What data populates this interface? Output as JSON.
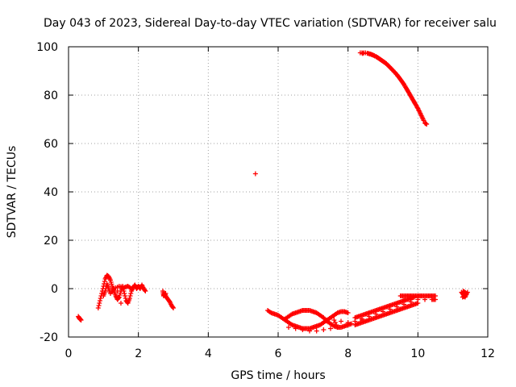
{
  "chart_data": {
    "type": "scatter",
    "title": "Day 043 of 2023, Sidereal Day-to-day VTEC variation (SDTVAR) for receiver salu",
    "xlabel": "GPS time / hours",
    "ylabel": "SDTVAR / TECUs",
    "xlim": [
      0,
      12
    ],
    "ylim": [
      -20,
      100
    ],
    "xticks": [
      0,
      2,
      4,
      6,
      8,
      10,
      12
    ],
    "yticks": [
      -20,
      0,
      20,
      40,
      60,
      80,
      100
    ],
    "grid": true,
    "marker": "+",
    "color": "#ff0000",
    "series": [
      {
        "name": "SDTVAR",
        "points": [
          [
            0.28,
            -11.5
          ],
          [
            0.32,
            -12.5
          ],
          [
            0.36,
            -13
          ],
          [
            0.3,
            -12
          ],
          [
            0.85,
            -8
          ],
          [
            0.9,
            -5
          ],
          [
            0.95,
            -2
          ],
          [
            1.0,
            1
          ],
          [
            1.05,
            4
          ],
          [
            1.1,
            5.5
          ],
          [
            1.15,
            5
          ],
          [
            1.2,
            3.5
          ],
          [
            1.25,
            1
          ],
          [
            1.3,
            -1
          ],
          [
            1.35,
            -3
          ],
          [
            1.4,
            -4.5
          ],
          [
            1.45,
            -3.5
          ],
          [
            1.5,
            -1
          ],
          [
            1.55,
            1
          ],
          [
            1.6,
            -2
          ],
          [
            1.65,
            -5
          ],
          [
            1.7,
            -6
          ],
          [
            1.75,
            -4
          ],
          [
            1.8,
            -1
          ],
          [
            1.85,
            0.5
          ],
          [
            1.9,
            1.5
          ],
          [
            1.95,
            0
          ],
          [
            2.0,
            1
          ],
          [
            2.05,
            0
          ],
          [
            2.1,
            1.5
          ],
          [
            2.15,
            0
          ],
          [
            2.2,
            -1
          ],
          [
            1.0,
            -3
          ],
          [
            1.05,
            -1
          ],
          [
            1.1,
            2
          ],
          [
            1.15,
            0
          ],
          [
            1.2,
            -2
          ],
          [
            1.3,
            0
          ],
          [
            1.45,
            1
          ],
          [
            1.6,
            0.5
          ],
          [
            1.7,
            1
          ],
          [
            1.8,
            0
          ],
          [
            1.5,
            -6
          ],
          [
            1.4,
            -1
          ],
          [
            2.7,
            -1
          ],
          [
            2.72,
            -3
          ],
          [
            2.75,
            -2
          ],
          [
            2.8,
            -3.5
          ],
          [
            2.85,
            -4.5
          ],
          [
            2.9,
            -5.5
          ],
          [
            2.95,
            -7
          ],
          [
            3.0,
            -8
          ],
          [
            2.78,
            -2
          ],
          [
            5.35,
            47.5
          ],
          [
            5.7,
            -9
          ],
          [
            5.8,
            -10
          ],
          [
            5.9,
            -10.5
          ],
          [
            6.0,
            -11
          ],
          [
            6.1,
            -12
          ],
          [
            6.2,
            -13
          ],
          [
            6.3,
            -14
          ],
          [
            6.4,
            -15
          ],
          [
            6.5,
            -15.5
          ],
          [
            6.6,
            -16
          ],
          [
            6.7,
            -16.5
          ],
          [
            6.8,
            -16.5
          ],
          [
            6.9,
            -16.5
          ],
          [
            7.0,
            -16
          ],
          [
            7.1,
            -15.5
          ],
          [
            7.2,
            -15
          ],
          [
            7.3,
            -14
          ],
          [
            7.4,
            -13
          ],
          [
            7.5,
            -12
          ],
          [
            7.6,
            -11
          ],
          [
            7.7,
            -10
          ],
          [
            7.8,
            -9.5
          ],
          [
            7.9,
            -9.5
          ],
          [
            8.0,
            -10
          ],
          [
            6.2,
            -12.5
          ],
          [
            6.3,
            -11.5
          ],
          [
            6.4,
            -10.5
          ],
          [
            6.5,
            -10
          ],
          [
            6.6,
            -9.5
          ],
          [
            6.7,
            -9
          ],
          [
            6.8,
            -9
          ],
          [
            6.9,
            -9
          ],
          [
            7.0,
            -9.5
          ],
          [
            7.1,
            -10
          ],
          [
            7.2,
            -11
          ],
          [
            7.3,
            -12
          ],
          [
            7.4,
            -13.5
          ],
          [
            7.5,
            -14.5
          ],
          [
            7.6,
            -15.5
          ],
          [
            7.7,
            -16
          ],
          [
            7.8,
            -16
          ],
          [
            7.9,
            -15.5
          ],
          [
            8.0,
            -15
          ],
          [
            8.1,
            -14.5
          ],
          [
            6.3,
            -16
          ],
          [
            6.5,
            -16.5
          ],
          [
            6.7,
            -17
          ],
          [
            6.9,
            -17.5
          ],
          [
            7.1,
            -17.5
          ],
          [
            7.3,
            -17
          ],
          [
            7.5,
            -16.5
          ],
          [
            7.7,
            -16
          ],
          [
            7.6,
            -13
          ],
          [
            7.8,
            -13.5
          ],
          [
            8.0,
            -14
          ],
          [
            8.2,
            -13.5
          ],
          [
            8.4,
            -13
          ],
          [
            8.2,
            -12
          ],
          [
            8.3,
            -11.5
          ],
          [
            8.4,
            -11
          ],
          [
            8.5,
            -10.5
          ],
          [
            8.6,
            -10
          ],
          [
            8.7,
            -9.5
          ],
          [
            8.8,
            -9
          ],
          [
            8.9,
            -8.5
          ],
          [
            9.0,
            -8
          ],
          [
            9.1,
            -7.5
          ],
          [
            9.2,
            -7
          ],
          [
            9.3,
            -6.5
          ],
          [
            9.4,
            -6
          ],
          [
            9.5,
            -5.5
          ],
          [
            9.6,
            -5
          ],
          [
            9.7,
            -4.5
          ],
          [
            9.8,
            -4
          ],
          [
            9.9,
            -3.5
          ],
          [
            8.2,
            -15
          ],
          [
            8.3,
            -14.5
          ],
          [
            8.4,
            -14
          ],
          [
            8.5,
            -13.5
          ],
          [
            8.6,
            -13
          ],
          [
            8.7,
            -12.5
          ],
          [
            8.8,
            -12
          ],
          [
            8.9,
            -11.5
          ],
          [
            9.0,
            -11
          ],
          [
            9.1,
            -10.5
          ],
          [
            9.2,
            -10
          ],
          [
            9.3,
            -9.5
          ],
          [
            9.4,
            -9
          ],
          [
            9.5,
            -8.5
          ],
          [
            9.6,
            -8
          ],
          [
            9.7,
            -7.5
          ],
          [
            9.8,
            -7
          ],
          [
            9.9,
            -6.5
          ],
          [
            10.0,
            -6
          ],
          [
            8.4,
            -12.5
          ],
          [
            8.6,
            -11.5
          ],
          [
            8.8,
            -10.5
          ],
          [
            9.0,
            -9.5
          ],
          [
            9.2,
            -8.5
          ],
          [
            9.4,
            -7.5
          ],
          [
            9.6,
            -6.5
          ],
          [
            9.8,
            -5.5
          ],
          [
            9.5,
            -3
          ],
          [
            9.6,
            -3
          ],
          [
            9.7,
            -3
          ],
          [
            9.8,
            -3
          ],
          [
            9.9,
            -3
          ],
          [
            10.0,
            -3
          ],
          [
            10.1,
            -3
          ],
          [
            10.2,
            -3
          ],
          [
            10.3,
            -3
          ],
          [
            10.4,
            -3
          ],
          [
            10.5,
            -3
          ],
          [
            9.6,
            -4.5
          ],
          [
            9.8,
            -4.5
          ],
          [
            10.0,
            -4.5
          ],
          [
            10.2,
            -4.5
          ],
          [
            10.4,
            -4.5
          ],
          [
            10.5,
            -4.5
          ],
          [
            11.25,
            -1.5
          ],
          [
            11.3,
            -2.5
          ],
          [
            11.35,
            -3.5
          ],
          [
            11.4,
            -2
          ],
          [
            11.3,
            -1
          ],
          [
            11.35,
            -3
          ],
          [
            11.28,
            -3.5
          ],
          [
            11.42,
            -1.5
          ],
          [
            8.35,
            97.5
          ],
          [
            8.5,
            97.5
          ],
          [
            8.65,
            97
          ],
          [
            8.8,
            96
          ],
          [
            8.9,
            95
          ],
          [
            9.0,
            94
          ],
          [
            9.1,
            93
          ],
          [
            9.2,
            91.5
          ],
          [
            9.3,
            90
          ],
          [
            9.4,
            88.5
          ],
          [
            9.5,
            86.5
          ],
          [
            9.6,
            84.5
          ],
          [
            9.7,
            82
          ],
          [
            9.8,
            79.5
          ],
          [
            9.9,
            77
          ],
          [
            10.0,
            74.5
          ],
          [
            10.1,
            71.5
          ],
          [
            10.2,
            68.5
          ],
          [
            10.25,
            68
          ],
          [
            8.42,
            97.2
          ],
          [
            8.58,
            97.2
          ],
          [
            8.72,
            96.5
          ],
          [
            8.85,
            95.5
          ],
          [
            8.95,
            94.5
          ],
          [
            9.05,
            93.5
          ],
          [
            9.15,
            92.2
          ],
          [
            9.25,
            90.8
          ],
          [
            9.35,
            89.2
          ],
          [
            9.45,
            87.5
          ],
          [
            9.55,
            85.5
          ],
          [
            9.65,
            83.2
          ],
          [
            9.75,
            80.8
          ],
          [
            9.85,
            78.2
          ],
          [
            9.95,
            75.8
          ],
          [
            10.05,
            73
          ],
          [
            10.15,
            70
          ]
        ]
      }
    ]
  }
}
